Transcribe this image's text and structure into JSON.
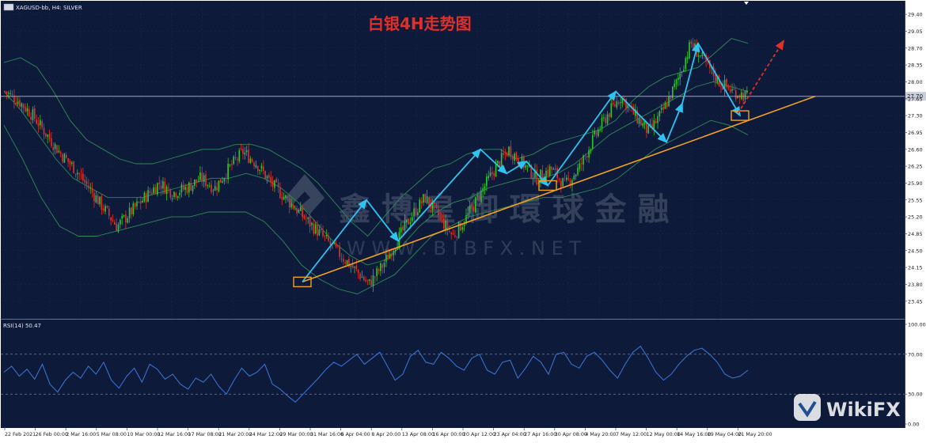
{
  "header": {
    "symbol_info": "XAGUSD-bb, H4: SILVER",
    "overlay_title": "白银4H走势图"
  },
  "watermark": {
    "brand_cn": "鑫 博 皇 御 環 球 金 融",
    "brand_url": "W W W . B I B F X . N E T",
    "wikifx_text": "WikiFX"
  },
  "colors": {
    "background": "#0d1a3a",
    "grid": "#1e2c52",
    "up_candle": "#31c431",
    "down_candle": "#e0302a",
    "bands": "#2e8b57",
    "zigzag": "#2fc3f0",
    "trendline": "#f2a11f",
    "projection": "#e0302a",
    "rsi_line": "#3c79d8",
    "title_text": "#e0302a",
    "axis_text": "#c8cdd8"
  },
  "chart_data": [
    {
      "type": "line",
      "name": "price",
      "price_axis": {
        "ticks": [
          "29.40",
          "29.05",
          "28.70",
          "28.35",
          "28.00",
          "27.65",
          "27.30",
          "26.95",
          "26.60",
          "26.25",
          "25.90",
          "25.55",
          "25.20",
          "24.85",
          "24.50",
          "24.15",
          "23.80",
          "23.45"
        ],
        "current_price_label": "27.70",
        "ylim": [
          23.2,
          29.5
        ]
      },
      "time_axis": {
        "labels": [
          "22 Feb 2021",
          "26 Feb 00:00",
          "2 Mar 16:00",
          "5 Mar 08:00",
          "10 Mar 00:00",
          "12 Mar 16:00",
          "17 Mar 08:00",
          "21 Mar 20:00",
          "24 Mar 12:00",
          "29 Mar 00:00",
          "31 Mar 16:00",
          "6 Apr 04:00",
          "8 Apr 20:00",
          "13 Apr 08:00",
          "16 Apr 00:00",
          "20 Apr 12:00",
          "23 Apr 04:00",
          "27 Apr 16:00",
          "30 Apr 08:00",
          "4 May 20:00",
          "7 May 12:00",
          "12 May 00:00",
          "14 May 16:00",
          "19 May 04:00",
          "21 May 20:00"
        ]
      },
      "close_path": [
        27.8,
        27.6,
        27.3,
        26.9,
        26.5,
        26.2,
        25.8,
        25.4,
        25.0,
        25.3,
        25.6,
        25.9,
        25.7,
        25.8,
        26.0,
        25.8,
        26.2,
        26.55,
        26.3,
        25.9,
        25.6,
        25.3,
        25.0,
        24.7,
        24.4,
        24.1,
        23.8,
        24.2,
        24.7,
        25.2,
        25.6,
        25.2,
        24.8,
        25.2,
        25.7,
        26.2,
        26.6,
        26.3,
        26.0,
        26.2,
        25.85,
        26.2,
        26.8,
        27.3,
        27.7,
        27.3,
        26.95,
        27.4,
        28.0,
        28.8,
        28.4,
        28.0,
        27.8,
        27.7
      ],
      "bollinger_upper": [
        28.4,
        28.5,
        28.3,
        27.8,
        27.2,
        26.8,
        26.6,
        26.4,
        26.3,
        26.3,
        26.4,
        26.5,
        26.6,
        26.6,
        26.7,
        26.7,
        26.6,
        26.4,
        26.2,
        25.9,
        25.5,
        25.1,
        24.8,
        25.2,
        25.6,
        25.9,
        26.2,
        26.3,
        26.5,
        26.6,
        26.6,
        26.4,
        26.5,
        26.7,
        26.8,
        26.9,
        27.0,
        27.2,
        27.6,
        27.9,
        28.1,
        28.2,
        28.3,
        28.6,
        28.9,
        28.8
      ],
      "bollinger_mid": [
        27.8,
        27.4,
        26.9,
        26.4,
        26.0,
        25.8,
        25.6,
        25.6,
        25.6,
        25.7,
        25.8,
        25.9,
        26.0,
        26.0,
        26.1,
        26.0,
        25.8,
        25.5,
        25.1,
        24.7,
        24.4,
        24.2,
        24.3,
        24.6,
        25.0,
        25.3,
        25.5,
        25.6,
        25.8,
        25.9,
        26.0,
        26.0,
        26.1,
        26.3,
        26.6,
        26.9,
        27.1,
        27.3,
        27.5,
        27.7,
        27.9,
        28.0,
        27.9,
        27.8
      ],
      "bollinger_lower": [
        27.1,
        26.4,
        25.6,
        25.0,
        24.8,
        24.8,
        24.9,
        25.0,
        25.1,
        25.2,
        25.2,
        25.3,
        25.3,
        25.3,
        25.1,
        24.7,
        24.2,
        23.9,
        23.7,
        23.6,
        23.8,
        24.0,
        24.4,
        24.8,
        25.0,
        25.2,
        25.3,
        25.4,
        25.5,
        25.6,
        25.6,
        25.7,
        25.8,
        26.0,
        26.3,
        26.6,
        26.8,
        27.0,
        27.2,
        27.1,
        26.9
      ],
      "zigzag_points": [
        {
          "time": "29 Mar 20:00",
          "price": 23.85
        },
        {
          "time": "6 Apr 20:00",
          "price": 25.55
        },
        {
          "time": "9 Apr 08:00",
          "price": 24.7
        },
        {
          "time": "20 Apr 00:00",
          "price": 26.6
        },
        {
          "time": "23 Apr 16:00",
          "price": 26.1
        },
        {
          "time": "26 Apr 16:00",
          "price": 26.35
        },
        {
          "time": "29 Apr 00:00",
          "price": 25.85
        },
        {
          "time": "7 May 12:00",
          "price": 27.8
        },
        {
          "time": "11 May 20:00",
          "price": 26.75
        },
        {
          "time": "14 May 04:00",
          "price": 27.55
        },
        {
          "time": "17 May 08:00",
          "price": 28.8
        },
        {
          "time": "21 May 00:00",
          "price": 27.3
        }
      ],
      "trendline": {
        "from": {
          "time": "29 Mar 20:00",
          "price": 23.85
        },
        "to": {
          "time": "end",
          "price": 27.7
        }
      },
      "projection": {
        "from": {
          "time": "21 May 20:00",
          "price": 27.35
        },
        "to": {
          "price": 28.85
        }
      },
      "highlight_boxes": [
        "29 Mar 20:00",
        "29 Apr 00:00",
        "21 May 00:00"
      ]
    },
    {
      "type": "line",
      "name": "RSI",
      "label": "RSI(14) 50.47",
      "ticks": [
        "100.00",
        "70.00",
        "30.00",
        "0.00"
      ],
      "levels": [
        70,
        30
      ],
      "ylim": [
        0,
        100
      ],
      "values": [
        52,
        58,
        48,
        55,
        45,
        60,
        40,
        32,
        44,
        52,
        46,
        58,
        50,
        62,
        44,
        36,
        48,
        56,
        42,
        60,
        55,
        45,
        50,
        40,
        35,
        46,
        42,
        50,
        38,
        30,
        44,
        56,
        48,
        52,
        60,
        40,
        35,
        28,
        22,
        30,
        38,
        46,
        55,
        62,
        58,
        64,
        70,
        60,
        66,
        72,
        58,
        44,
        50,
        68,
        74,
        62,
        60,
        72,
        66,
        58,
        54,
        66,
        70,
        54,
        50,
        62,
        64,
        46,
        56,
        68,
        62,
        50,
        70,
        72,
        60,
        56,
        68,
        72,
        64,
        54,
        46,
        60,
        72,
        78,
        66,
        52,
        44,
        50,
        60,
        68,
        74,
        76,
        70,
        62,
        50,
        46,
        48,
        54
      ]
    }
  ]
}
